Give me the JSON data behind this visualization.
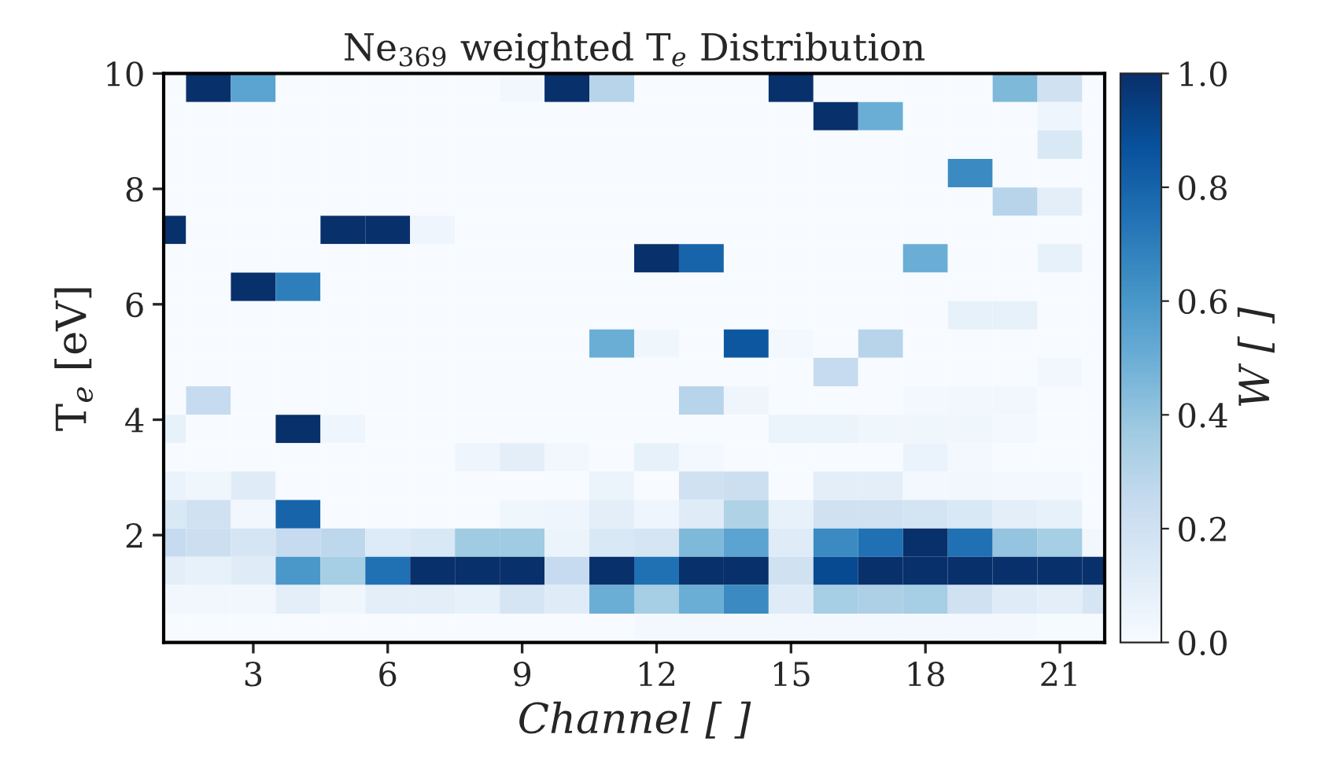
{
  "chart_data": {
    "type": "heatmap",
    "title": "Ne$_{369}$ weighted T$_{e}$ Distribution",
    "xlabel": "Channel [ ]",
    "ylabel": "T$_{e}$ [eV]",
    "clabel": "W [ ]",
    "x": [
      1,
      2,
      3,
      4,
      5,
      6,
      7,
      8,
      9,
      10,
      11,
      12,
      13,
      14,
      15,
      16,
      17,
      18,
      19,
      20,
      21,
      22
    ],
    "y": [
      9.75,
      9.26,
      8.77,
      8.27,
      7.78,
      7.29,
      6.8,
      6.3,
      5.81,
      5.32,
      4.83,
      4.33,
      3.84,
      3.35,
      2.86,
      2.36,
      1.87,
      1.38,
      0.89,
      0.39
    ],
    "xlim": [
      1,
      22
    ],
    "ylim": [
      0.14,
      10
    ],
    "xticks": [
      3,
      6,
      9,
      12,
      15,
      18,
      21
    ],
    "yticks": [
      2,
      4,
      6,
      8,
      10
    ],
    "clim": [
      0,
      1
    ],
    "cticks": [
      {
        "value": 0,
        "label": "0.0"
      },
      {
        "value": 0.2,
        "label": "0.2"
      },
      {
        "value": 0.4,
        "label": "0.4"
      },
      {
        "value": 0.6,
        "label": "0.6"
      },
      {
        "value": 0.8,
        "label": "0.8"
      },
      {
        "value": 1,
        "label": "1.0"
      }
    ],
    "cells": [
      [
        0,
        1.0,
        0.55,
        0,
        0,
        0,
        0,
        0,
        0.03,
        1.0,
        0.3,
        0,
        0,
        0,
        1.0,
        0,
        0,
        0,
        0,
        0.45,
        0.2,
        0
      ],
      [
        0,
        0,
        0,
        0,
        0,
        0,
        0,
        0,
        0,
        0,
        0,
        0,
        0,
        0,
        0,
        1.0,
        0.5,
        0,
        0,
        0,
        0.05,
        0
      ],
      [
        0,
        0,
        0,
        0,
        0,
        0,
        0,
        0,
        0,
        0,
        0,
        0,
        0,
        0,
        0,
        0,
        0,
        0,
        0,
        0,
        0.15,
        0
      ],
      [
        0,
        0,
        0,
        0,
        0,
        0,
        0,
        0,
        0,
        0,
        0,
        0,
        0,
        0,
        0,
        0,
        0,
        0,
        0.65,
        0,
        0,
        0
      ],
      [
        0,
        0,
        0,
        0,
        0,
        0,
        0,
        0,
        0,
        0,
        0,
        0,
        0,
        0,
        0,
        0,
        0,
        0,
        0,
        0.3,
        0.1,
        0
      ],
      [
        1.0,
        0,
        0,
        0,
        1.0,
        1.0,
        0.05,
        0,
        0,
        0,
        0,
        0,
        0,
        0,
        0,
        0,
        0,
        0,
        0,
        0,
        0,
        0
      ],
      [
        0,
        0,
        0,
        0,
        0,
        0,
        0,
        0,
        0,
        0,
        0,
        1.0,
        0.8,
        0,
        0,
        0,
        0,
        0.5,
        0,
        0,
        0.08,
        0
      ],
      [
        0,
        0,
        1.0,
        0.7,
        0,
        0,
        0,
        0,
        0,
        0,
        0,
        0,
        0,
        0,
        0,
        0,
        0,
        0,
        0,
        0,
        0,
        0
      ],
      [
        0,
        0,
        0,
        0,
        0,
        0,
        0,
        0,
        0,
        0,
        0,
        0,
        0,
        0,
        0,
        0,
        0,
        0,
        0.08,
        0.08,
        0,
        0
      ],
      [
        0,
        0,
        0,
        0,
        0,
        0,
        0,
        0,
        0,
        0,
        0.5,
        0.04,
        0,
        0.85,
        0.02,
        0,
        0.3,
        0,
        0,
        0,
        0,
        0
      ],
      [
        0,
        0,
        0,
        0,
        0,
        0,
        0,
        0,
        0,
        0,
        0,
        0,
        0,
        0,
        0,
        0.25,
        0,
        0,
        0,
        0,
        0.03,
        0
      ],
      [
        0,
        0.25,
        0,
        0,
        0,
        0,
        0,
        0,
        0,
        0,
        0,
        0,
        0.3,
        0.05,
        0,
        0,
        0,
        0.02,
        0.03,
        0.03,
        0,
        0
      ],
      [
        0.08,
        0,
        0,
        1.0,
        0.05,
        0,
        0,
        0,
        0,
        0,
        0,
        0,
        0,
        0,
        0.06,
        0.06,
        0.04,
        0.04,
        0.04,
        0.02,
        0,
        0
      ],
      [
        0,
        0,
        0,
        0,
        0,
        0,
        0,
        0.05,
        0.1,
        0.03,
        0,
        0.08,
        0.02,
        0,
        0,
        0,
        0,
        0.07,
        0.02,
        0,
        0,
        0
      ],
      [
        0.07,
        0.04,
        0.12,
        0,
        0,
        0,
        0,
        0,
        0,
        0,
        0.06,
        0,
        0.2,
        0.22,
        0,
        0.1,
        0.1,
        0.02,
        0.03,
        0.02,
        0.02,
        0
      ],
      [
        0.15,
        0.2,
        0.03,
        0.8,
        0,
        0,
        0,
        0,
        0.04,
        0.05,
        0.1,
        0.05,
        0.12,
        0.32,
        0.08,
        0.2,
        0.2,
        0.18,
        0.15,
        0.1,
        0.08,
        0
      ],
      [
        0.25,
        0.22,
        0.17,
        0.25,
        0.28,
        0.13,
        0.15,
        0.37,
        0.37,
        0.06,
        0.15,
        0.17,
        0.45,
        0.55,
        0.12,
        0.65,
        0.75,
        1.0,
        0.75,
        0.4,
        0.35,
        0.03
      ],
      [
        0.1,
        0.08,
        0.12,
        0.6,
        0.35,
        0.75,
        1.0,
        1.0,
        1.0,
        0.25,
        1.0,
        0.75,
        1.0,
        1.0,
        0.2,
        0.9,
        1.0,
        1.0,
        1.0,
        1.0,
        1.0,
        1.0
      ],
      [
        0.03,
        0.03,
        0.03,
        0.1,
        0.04,
        0.1,
        0.1,
        0.08,
        0.17,
        0.12,
        0.5,
        0.35,
        0.5,
        0.65,
        0.12,
        0.35,
        0.33,
        0.35,
        0.2,
        0.12,
        0.1,
        0.17
      ],
      [
        0,
        0,
        0,
        0,
        0,
        0,
        0,
        0,
        0,
        0,
        0,
        0.02,
        0.02,
        0.02,
        0.02,
        0.02,
        0.02,
        0.02,
        0.02,
        0.02,
        0.01,
        0.01
      ]
    ]
  }
}
